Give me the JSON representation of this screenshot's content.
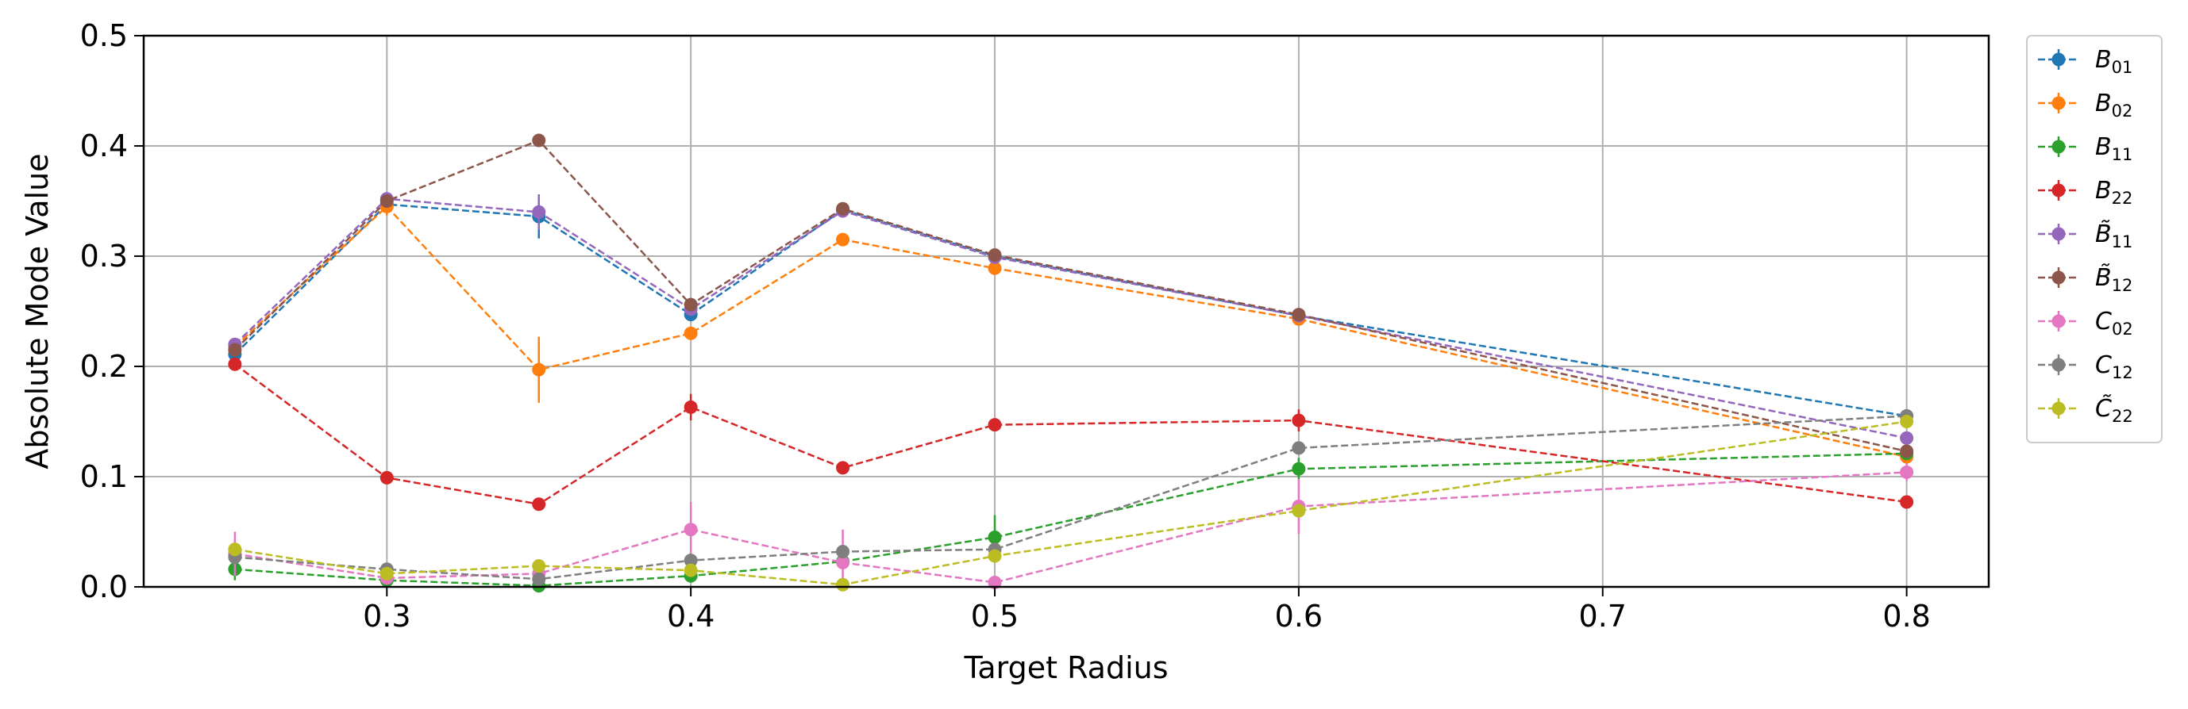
{
  "chart_data": {
    "type": "line",
    "xlabel": "Target Radius",
    "ylabel": "Absolute Mode Value",
    "xlim": [
      0.22,
      0.827
    ],
    "ylim": [
      0.0,
      0.5
    ],
    "xticks": [
      "0.3",
      "0.4",
      "0.5",
      "0.6",
      "0.7",
      "0.8"
    ],
    "yticks": [
      "0.0",
      "0.1",
      "0.2",
      "0.3",
      "0.4",
      "0.5"
    ],
    "grid": true,
    "legend_position": "outside-right",
    "x": [
      0.25,
      0.3,
      0.35,
      0.4,
      0.45,
      0.5,
      0.6,
      0.8
    ],
    "series": [
      {
        "name": "B01",
        "sym": "B",
        "tilde": false,
        "sub": "01",
        "color": "#1f77b4",
        "values": [
          0.211,
          0.347,
          0.336,
          0.247,
          0.342,
          0.3,
          0.246,
          0.155
        ],
        "errors": [
          0.005,
          0.004,
          0.02,
          0.004,
          0.004,
          0.003,
          0.004,
          0.004
        ]
      },
      {
        "name": "B02",
        "sym": "B",
        "tilde": false,
        "sub": "02",
        "color": "#ff7f0e",
        "values": [
          0.218,
          0.345,
          0.197,
          0.23,
          0.315,
          0.289,
          0.243,
          0.118
        ],
        "errors": [
          0.005,
          0.008,
          0.03,
          0.006,
          0.006,
          0.005,
          0.004,
          0.004
        ]
      },
      {
        "name": "B11",
        "sym": "B",
        "tilde": false,
        "sub": "11",
        "color": "#2ca02c",
        "values": [
          0.016,
          0.006,
          0.001,
          0.01,
          0.023,
          0.045,
          0.107,
          0.121
        ],
        "errors": [
          0.01,
          0.005,
          0.003,
          0.004,
          0.006,
          0.02,
          0.01,
          0.005
        ]
      },
      {
        "name": "B22",
        "sym": "B",
        "tilde": false,
        "sub": "22",
        "color": "#d62728",
        "values": [
          0.202,
          0.099,
          0.075,
          0.163,
          0.108,
          0.147,
          0.151,
          0.077
        ],
        "errors": [
          0.005,
          0.004,
          0.004,
          0.012,
          0.004,
          0.004,
          0.01,
          0.004
        ]
      },
      {
        "name": "B̃11",
        "sym": "B",
        "tilde": true,
        "sub": "11",
        "color": "#9467bd",
        "values": [
          0.22,
          0.352,
          0.34,
          0.252,
          0.341,
          0.299,
          0.246,
          0.135
        ],
        "errors": [
          0.005,
          0.005,
          0.016,
          0.005,
          0.005,
          0.004,
          0.004,
          0.004
        ]
      },
      {
        "name": "B̃12",
        "sym": "B",
        "tilde": true,
        "sub": "12",
        "color": "#8c564b",
        "values": [
          0.215,
          0.35,
          0.405,
          0.256,
          0.343,
          0.301,
          0.247,
          0.123
        ],
        "errors": [
          0.005,
          0.004,
          0.004,
          0.004,
          0.004,
          0.004,
          0.004,
          0.004
        ]
      },
      {
        "name": "C02",
        "sym": "C",
        "tilde": false,
        "sub": "02",
        "color": "#e377c2",
        "values": [
          0.03,
          0.008,
          0.012,
          0.052,
          0.022,
          0.004,
          0.073,
          0.104
        ],
        "errors": [
          0.02,
          0.005,
          0.006,
          0.025,
          0.03,
          0.006,
          0.025,
          0.008
        ]
      },
      {
        "name": "C12",
        "sym": "C",
        "tilde": false,
        "sub": "12",
        "color": "#7f7f7f",
        "values": [
          0.027,
          0.016,
          0.007,
          0.024,
          0.032,
          0.034,
          0.126,
          0.155
        ],
        "errors": [
          0.006,
          0.005,
          0.004,
          0.005,
          0.006,
          0.005,
          0.006,
          0.005
        ]
      },
      {
        "name": "C̃22",
        "sym": "C",
        "tilde": true,
        "sub": "22",
        "color": "#bcbd22",
        "values": [
          0.034,
          0.012,
          0.019,
          0.015,
          0.002,
          0.028,
          0.069,
          0.15
        ],
        "errors": [
          0.006,
          0.004,
          0.004,
          0.005,
          0.004,
          0.005,
          0.006,
          0.005
        ]
      }
    ]
  }
}
